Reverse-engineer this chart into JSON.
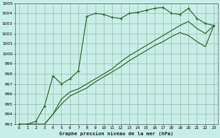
{
  "title": "Graphe pression niveau de la mer (hPa)",
  "background_color": "#c8eee8",
  "grid_color": "#99bbaa",
  "line_color": "#2d6a2d",
  "marker": "+",
  "ylim": [
    993,
    1005
  ],
  "xlim": [
    -0.5,
    23.5
  ],
  "line1_x": [
    0,
    1,
    2,
    3,
    4,
    5,
    6,
    7,
    8,
    9,
    10,
    11,
    12,
    13,
    14,
    15,
    16,
    17,
    18,
    19,
    20,
    21,
    22,
    23
  ],
  "line1_y": [
    993.0,
    993.0,
    993.3,
    994.8,
    997.8,
    997.0,
    997.5,
    998.3,
    1003.7,
    1004.0,
    1003.9,
    1003.6,
    1003.5,
    1004.0,
    1004.1,
    1004.3,
    1004.5,
    1004.6,
    1004.0,
    1003.9,
    1004.5,
    1003.5,
    1003.0,
    1002.8
  ],
  "line2_x": [
    0,
    1,
    2,
    3,
    4,
    5,
    6,
    7,
    8,
    9,
    10,
    11,
    12,
    13,
    14,
    15,
    16,
    17,
    18,
    19,
    20,
    21,
    22,
    23
  ],
  "line2_y": [
    993.0,
    993.0,
    993.0,
    993.0,
    994.0,
    995.5,
    996.2,
    996.5,
    997.0,
    997.5,
    998.0,
    998.5,
    999.2,
    999.8,
    1000.3,
    1000.8,
    1001.3,
    1001.8,
    1002.3,
    1002.8,
    1003.2,
    1002.5,
    1002.0,
    1002.8
  ],
  "line3_x": [
    0,
    1,
    2,
    3,
    4,
    5,
    6,
    7,
    8,
    9,
    10,
    11,
    12,
    13,
    14,
    15,
    16,
    17,
    18,
    19,
    20,
    21,
    22,
    23
  ],
  "line3_y": [
    993.0,
    993.0,
    993.0,
    993.0,
    994.0,
    995.0,
    995.8,
    996.2,
    996.6,
    997.2,
    997.7,
    998.2,
    998.7,
    999.3,
    999.8,
    1000.3,
    1000.8,
    1001.2,
    1001.7,
    1002.1,
    1001.8,
    1001.2,
    1000.7,
    1002.8
  ],
  "yticks": [
    993,
    994,
    995,
    996,
    997,
    998,
    999,
    1000,
    1001,
    1002,
    1003,
    1004,
    1005
  ]
}
